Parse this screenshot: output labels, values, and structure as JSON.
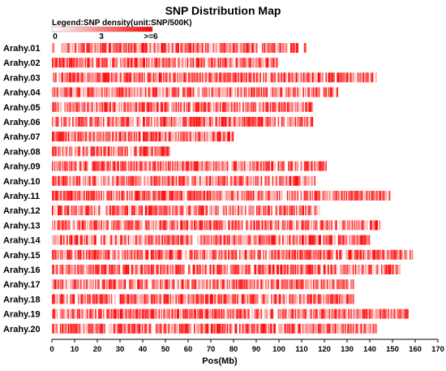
{
  "chart_data": {
    "type": "heatmap",
    "title": "SNP Distribution Map",
    "legend": {
      "title": "Legend:SNP density(unit:SNP/500K)",
      "ticks": [
        "0",
        "3",
        ">=6"
      ],
      "color_low": "#ffffff",
      "color_high": "#ff0000"
    },
    "xlabel": "Pos(Mb)",
    "xlim": [
      0,
      170
    ],
    "xticks": [
      0,
      10,
      20,
      30,
      40,
      50,
      60,
      70,
      80,
      90,
      100,
      110,
      120,
      130,
      140,
      150,
      160,
      170
    ],
    "bin_size_mb": 0.5,
    "color_scale_max": 6,
    "chromosomes": [
      {
        "name": "Arahy.01",
        "length_mb": 112
      },
      {
        "name": "Arahy.02",
        "length_mb": 100
      },
      {
        "name": "Arahy.03",
        "length_mb": 143
      },
      {
        "name": "Arahy.04",
        "length_mb": 126
      },
      {
        "name": "Arahy.05",
        "length_mb": 115
      },
      {
        "name": "Arahy.06",
        "length_mb": 115
      },
      {
        "name": "Arahy.07",
        "length_mb": 80
      },
      {
        "name": "Arahy.08",
        "length_mb": 52
      },
      {
        "name": "Arahy.09",
        "length_mb": 121
      },
      {
        "name": "Arahy.10",
        "length_mb": 116
      },
      {
        "name": "Arahy.11",
        "length_mb": 149
      },
      {
        "name": "Arahy.12",
        "length_mb": 118
      },
      {
        "name": "Arahy.13",
        "length_mb": 145
      },
      {
        "name": "Arahy.14",
        "length_mb": 140
      },
      {
        "name": "Arahy.15",
        "length_mb": 160
      },
      {
        "name": "Arahy.16",
        "length_mb": 154
      },
      {
        "name": "Arahy.17",
        "length_mb": 133
      },
      {
        "name": "Arahy.18",
        "length_mb": 133
      },
      {
        "name": "Arahy.19",
        "length_mb": 157
      },
      {
        "name": "Arahy.20",
        "length_mb": 143
      }
    ]
  }
}
